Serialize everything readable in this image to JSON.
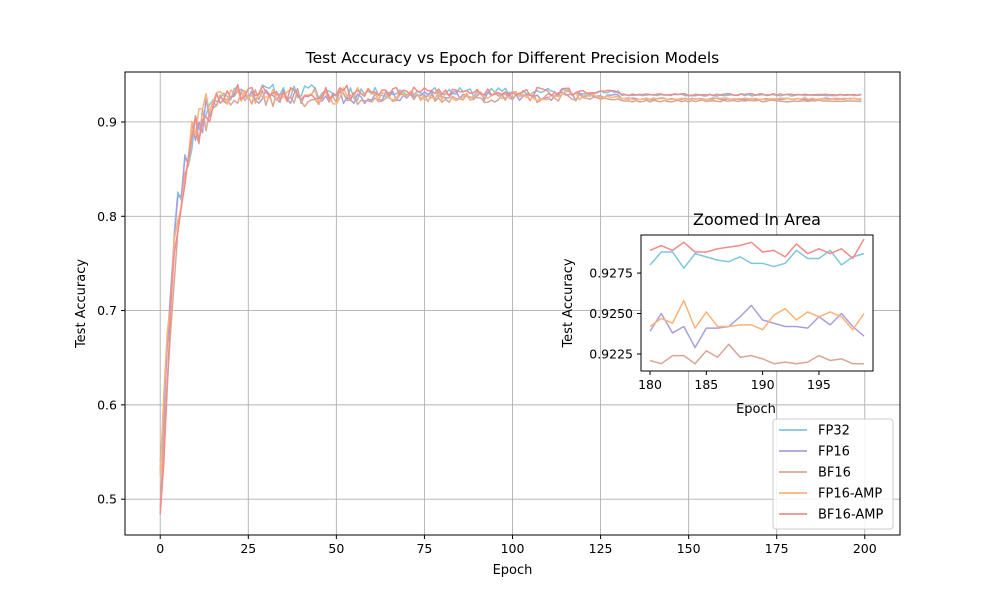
{
  "chart_data": {
    "type": "line",
    "title": "Test Accuracy vs Epoch for Different Precision Models",
    "xlabel": "Epoch",
    "ylabel": "Test Accuracy",
    "xlim": [
      -10,
      210
    ],
    "ylim": [
      0.462,
      0.953
    ],
    "xticks": [
      0,
      25,
      50,
      75,
      100,
      125,
      150,
      175,
      200
    ],
    "xtick_labels": [
      "0",
      "25",
      "50",
      "75",
      "100",
      "125",
      "150",
      "175",
      "200"
    ],
    "yticks": [
      0.5,
      0.6,
      0.7,
      0.8,
      0.9
    ],
    "ytick_labels": [
      "0.5",
      "0.6",
      "0.7",
      "0.8",
      "0.9"
    ],
    "grid": true,
    "legend_position": "lower-right",
    "colors": {
      "FP32": "#7fc6de",
      "FP16": "#ab9fdb",
      "BF16": "#d9a696",
      "FP16-AMP": "#fcb378",
      "BF16-AMP": "#f28b89"
    },
    "series": [
      {
        "name": "FP32",
        "color": "#7fc6de",
        "seed": 11,
        "start": 0.54,
        "plateau": 0.925,
        "final": 0.9285
      },
      {
        "name": "FP16",
        "color": "#ab9fdb",
        "seed": 23,
        "start": 0.53,
        "plateau": 0.924,
        "final": 0.9245
      },
      {
        "name": "BF16",
        "color": "#d9a696",
        "seed": 37,
        "start": 0.49,
        "plateau": 0.922,
        "final": 0.9222
      },
      {
        "name": "FP16-AMP",
        "color": "#fcb378",
        "seed": 41,
        "start": 0.525,
        "plateau": 0.924,
        "final": 0.9246
      },
      {
        "name": "BF16-AMP",
        "color": "#f28b89",
        "seed": 53,
        "start": 0.484,
        "plateau": 0.927,
        "final": 0.929
      }
    ],
    "inset": {
      "title": "Zoomed In Area",
      "xlabel": "Epoch",
      "ylabel": "Test Accuracy",
      "xlim": [
        179.2,
        199.8
      ],
      "ylim": [
        0.92145,
        0.92985
      ],
      "xticks": [
        180,
        185,
        190,
        195
      ],
      "xtick_labels": [
        "180",
        "185",
        "190",
        "195"
      ],
      "yticks": [
        0.9225,
        0.925,
        0.9275
      ],
      "ytick_labels": [
        "0.9225",
        "0.9250",
        "0.9275"
      ],
      "x": [
        180,
        181,
        182,
        183,
        184,
        185,
        186,
        187,
        188,
        189,
        190,
        191,
        192,
        193,
        194,
        195,
        196,
        197,
        198,
        199
      ],
      "series": [
        {
          "name": "FP32",
          "color": "#7fc6de",
          "values": [
            0.928,
            0.9288,
            0.9288,
            0.9278,
            0.9287,
            0.9285,
            0.9283,
            0.9282,
            0.9285,
            0.9281,
            0.9281,
            0.9279,
            0.9281,
            0.9289,
            0.9284,
            0.9284,
            0.9289,
            0.928,
            0.9285,
            0.9287
          ]
        },
        {
          "name": "FP16",
          "color": "#ab9fdb",
          "values": [
            0.9239,
            0.925,
            0.9238,
            0.9242,
            0.9229,
            0.9241,
            0.9241,
            0.9242,
            0.9248,
            0.9255,
            0.9246,
            0.9244,
            0.9242,
            0.9242,
            0.9241,
            0.9248,
            0.9243,
            0.925,
            0.9242,
            0.9236
          ]
        },
        {
          "name": "BF16",
          "color": "#d9a696",
          "values": [
            0.9221,
            0.9219,
            0.9224,
            0.9224,
            0.9219,
            0.9227,
            0.9223,
            0.9231,
            0.9223,
            0.9224,
            0.9222,
            0.9219,
            0.922,
            0.9219,
            0.922,
            0.9224,
            0.9221,
            0.9222,
            0.9219,
            0.9219
          ]
        },
        {
          "name": "FP16-AMP",
          "color": "#fcb378",
          "values": [
            0.9242,
            0.9247,
            0.9244,
            0.9258,
            0.9241,
            0.9251,
            0.9242,
            0.9242,
            0.9243,
            0.9243,
            0.924,
            0.9249,
            0.9253,
            0.9246,
            0.9251,
            0.9248,
            0.9251,
            0.9248,
            0.924,
            0.925
          ]
        },
        {
          "name": "BF16-AMP",
          "color": "#f28b89",
          "values": [
            0.9289,
            0.9292,
            0.9289,
            0.9294,
            0.9288,
            0.9288,
            0.929,
            0.9291,
            0.9292,
            0.9294,
            0.9288,
            0.9289,
            0.9285,
            0.9293,
            0.9287,
            0.929,
            0.9287,
            0.929,
            0.9284,
            0.9296
          ]
        }
      ]
    }
  }
}
